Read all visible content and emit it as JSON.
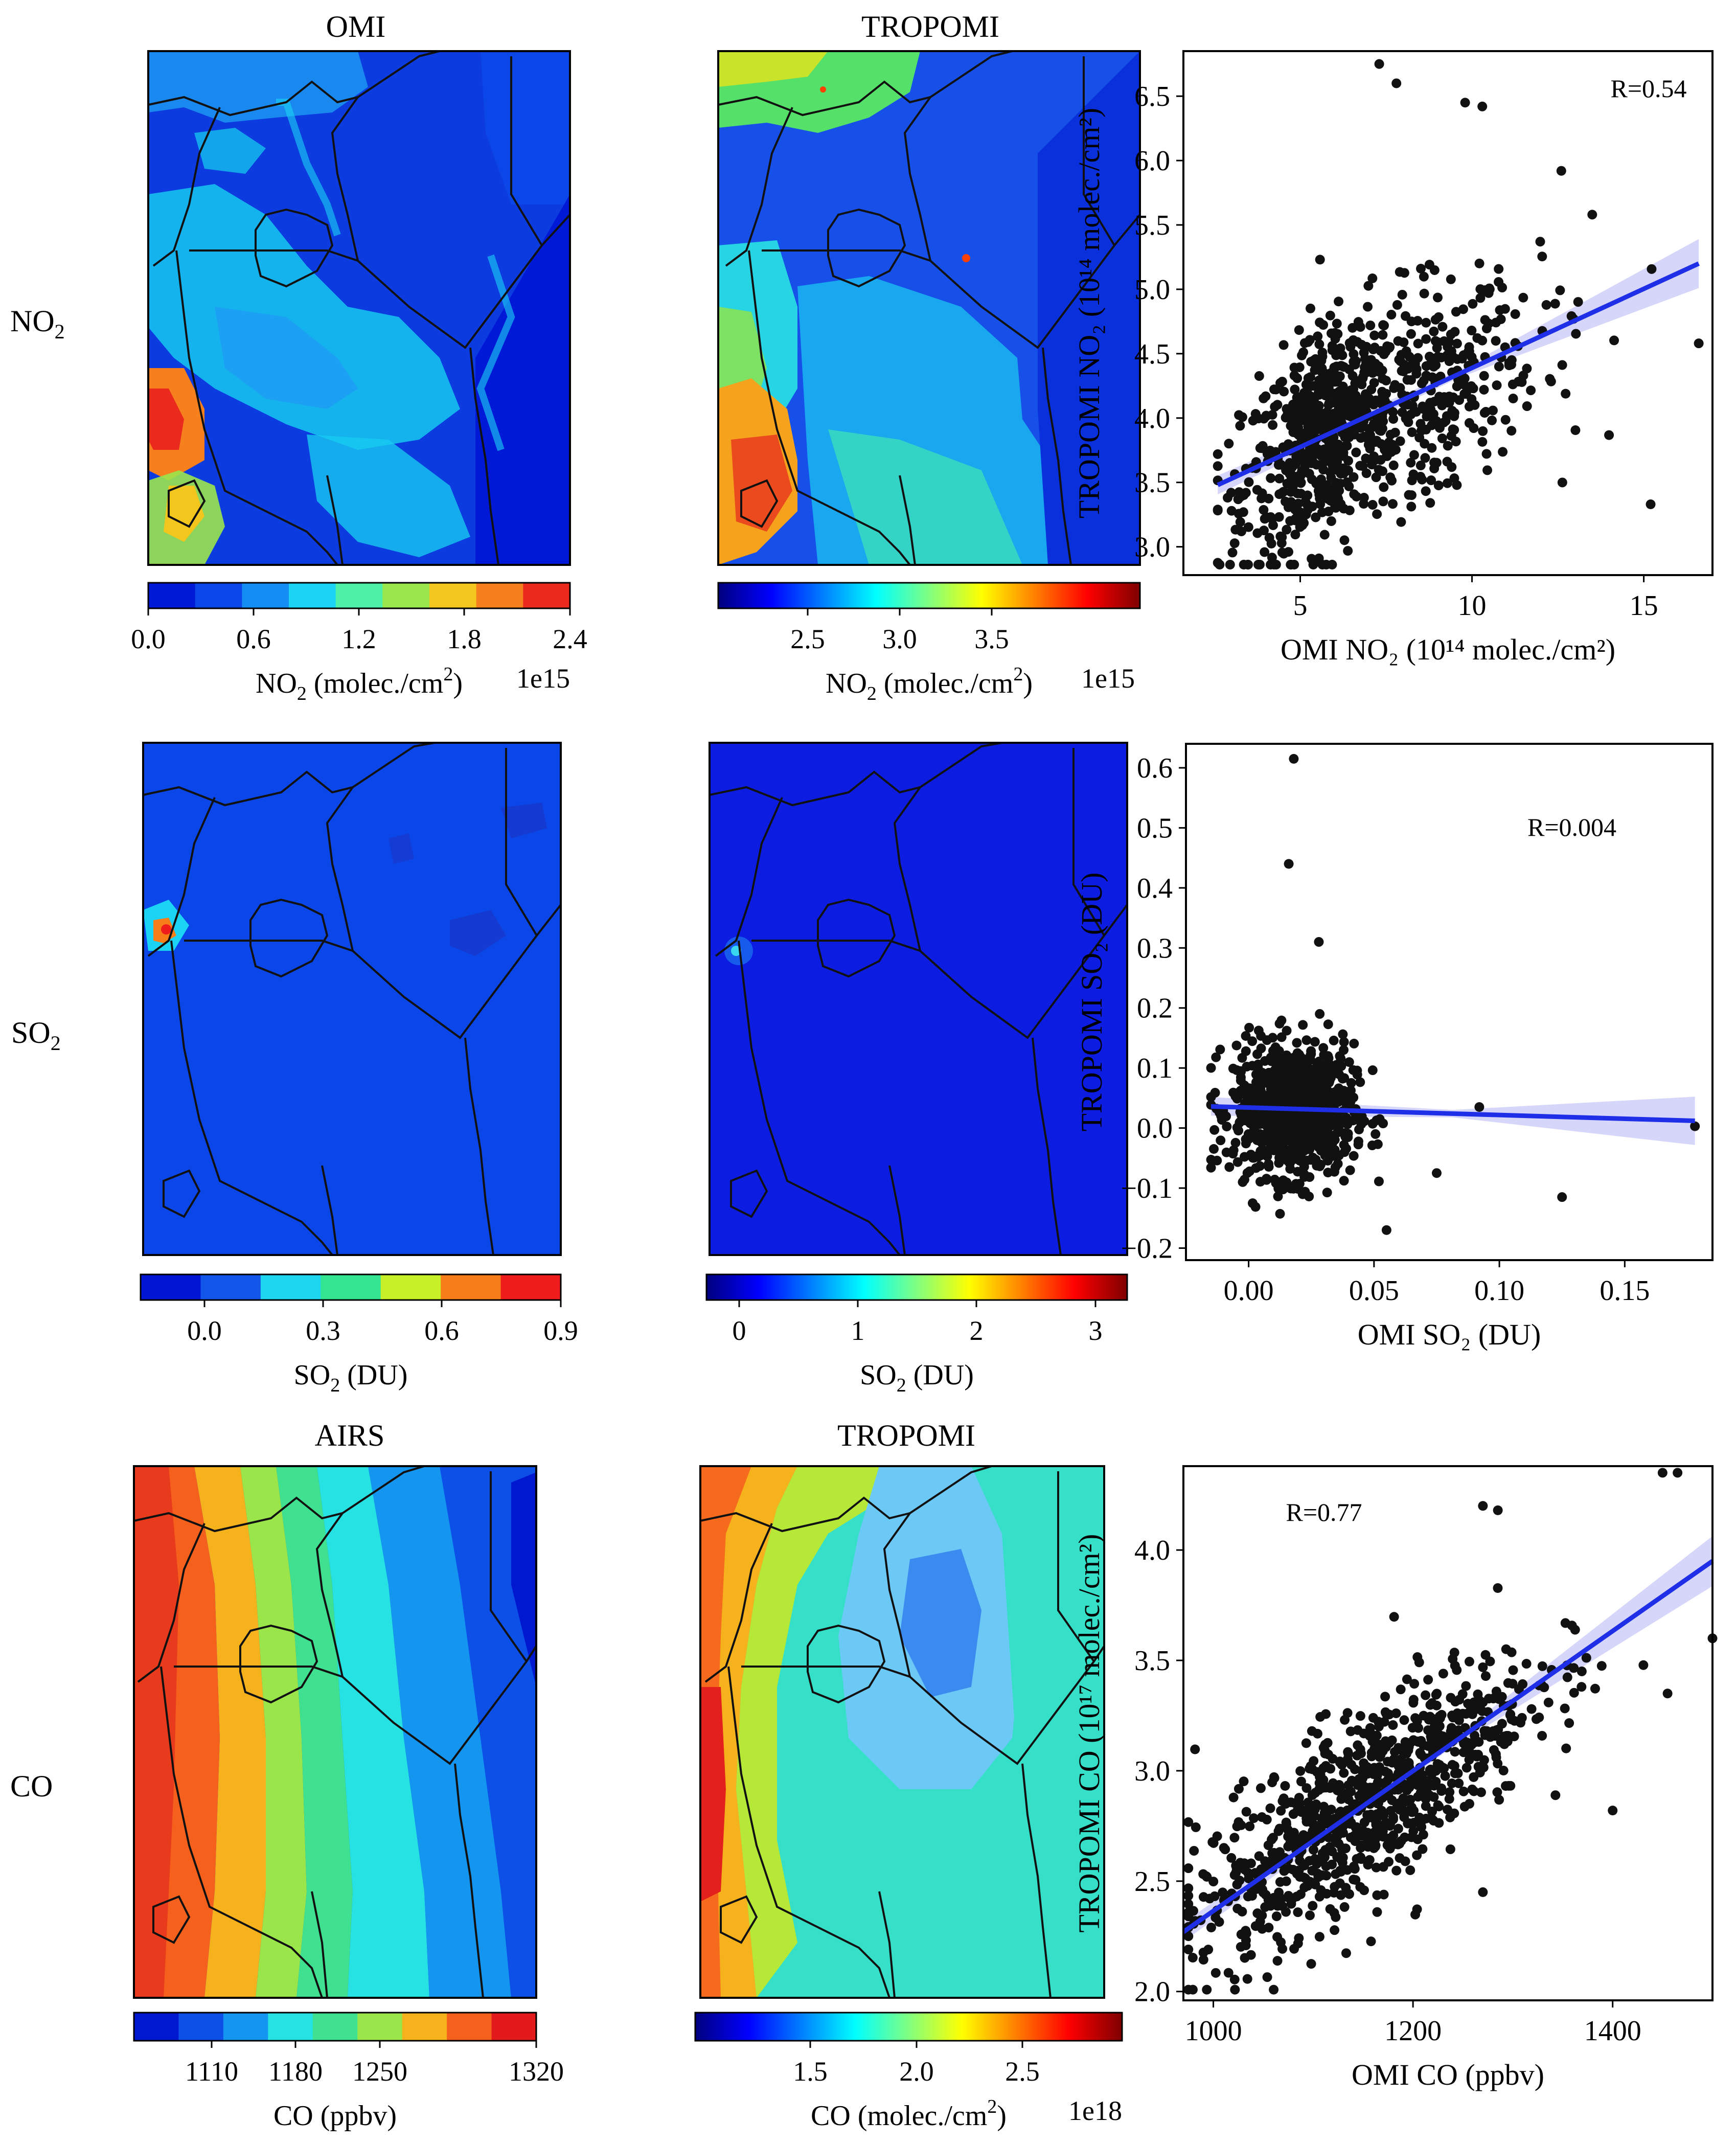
{
  "figure": {
    "row_labels": [
      {
        "main": "NO",
        "sub": "2"
      },
      {
        "main": "SO",
        "sub": "2"
      },
      {
        "main": "CO",
        "sub": ""
      }
    ],
    "maps": [
      {
        "title": "OMI",
        "colorbar": {
          "ticks": [
            "0.0",
            "0.6",
            "1.2",
            "1.8",
            "2.4"
          ],
          "label_main": "NO",
          "label_sub": "2",
          "label_rest": " (molec./cm",
          "label_sup": "2",
          "label_end": ")",
          "exponent": "1e15",
          "discrete": true,
          "colors": [
            "#0019d6",
            "#0b46e8",
            "#148ef5",
            "#1bd3f5",
            "#4df0a6",
            "#9ae64d",
            "#f2c61c",
            "#f5801d",
            "#ea2a1d"
          ]
        }
      },
      {
        "title": "TROPOMI",
        "colorbar": {
          "ticks": [
            "2.5",
            "3.0",
            "3.5"
          ],
          "label_main": "NO",
          "label_sub": "2",
          "label_rest": " (molec./cm",
          "label_sup": "2",
          "label_end": ")",
          "exponent": "1e15",
          "discrete": false,
          "colors": [
            "#00007f",
            "#0000ff",
            "#0080ff",
            "#00ffff",
            "#80ff80",
            "#ffff00",
            "#ff8000",
            "#ff0000",
            "#7f0000"
          ]
        }
      },
      {
        "title": "",
        "colorbar": {
          "ticks": [
            "0.0",
            "0.3",
            "0.6",
            "0.9"
          ],
          "label_main": "SO",
          "label_sub": "2",
          "label_rest": " (DU)",
          "label_sup": "",
          "label_end": "",
          "exponent": "",
          "discrete": true,
          "colors": [
            "#0016d4",
            "#1357ea",
            "#1fd6f0",
            "#35e490",
            "#c8f028",
            "#f77d18",
            "#ef1c1c"
          ]
        }
      },
      {
        "title": "",
        "colorbar": {
          "ticks": [
            "0",
            "1",
            "2",
            "3"
          ],
          "label_main": "SO",
          "label_sub": "2",
          "label_rest": " (DU)",
          "label_sup": "",
          "label_end": "",
          "exponent": "",
          "discrete": false,
          "colors": [
            "#00007f",
            "#0000ff",
            "#0080ff",
            "#00ffff",
            "#80ff80",
            "#ffff00",
            "#ff8000",
            "#ff0000",
            "#7f0000"
          ]
        }
      },
      {
        "title": "AIRS",
        "colorbar": {
          "ticks": [
            "1110",
            "1180",
            "1250",
            "1320"
          ],
          "label_main": "CO (ppbv)",
          "label_sub": "",
          "label_rest": "",
          "label_sup": "",
          "label_end": "",
          "exponent": "",
          "discrete": true,
          "colors": [
            "#0018d0",
            "#0d50e8",
            "#1495f0",
            "#26e2e2",
            "#3fe08f",
            "#9ae54a",
            "#f5b21d",
            "#f5601c",
            "#e31a1c"
          ]
        }
      },
      {
        "title": "TROPOMI",
        "colorbar": {
          "ticks": [
            "1.5",
            "2.0",
            "2.5"
          ],
          "label_main": "CO (molec./cm",
          "label_sub": "",
          "label_rest": "",
          "label_sup": "2",
          "label_end": ")",
          "exponent": "1e18",
          "discrete": false,
          "colors": [
            "#00007f",
            "#0000ff",
            "#0080ff",
            "#00ffff",
            "#80ff80",
            "#ffff00",
            "#ff8000",
            "#ff0000",
            "#7f0000"
          ]
        }
      }
    ]
  },
  "chart_data": [
    {
      "type": "scatter",
      "title": "",
      "annotation": "R=0.54",
      "xlabel": "OMI NO₂ (10¹⁴ molec./cm²)",
      "ylabel": "TROPOMI NO₂ (10¹⁴ molec./cm²)",
      "xticks": [
        5,
        10,
        15
      ],
      "yticks": [
        3.0,
        3.5,
        4.0,
        4.5,
        5.0,
        5.5,
        6.0,
        6.5
      ],
      "xlim": [
        1.6,
        17.0
      ],
      "ylim": [
        2.78,
        6.85
      ],
      "fit": {
        "x": [
          2.6,
          16.6
        ],
        "y": [
          3.48,
          5.2
        ]
      },
      "cloud": {
        "n": 900,
        "x_mean": 6.2,
        "x_sd": 2.6,
        "x_min": 2.6,
        "x_max": 16.6,
        "y_mean": 3.97,
        "y_sd": 0.5,
        "r": 0.54
      },
      "points": [
        {
          "x": 7.3,
          "y": 6.75
        },
        {
          "x": 7.8,
          "y": 6.6
        },
        {
          "x": 9.8,
          "y": 6.45
        },
        {
          "x": 10.3,
          "y": 6.42
        },
        {
          "x": 15.2,
          "y": 3.33
        },
        {
          "x": 16.6,
          "y": 4.58
        },
        {
          "x": 13.5,
          "y": 5.58
        },
        {
          "x": 12.6,
          "y": 5.92
        }
      ]
    },
    {
      "type": "scatter",
      "title": "",
      "annotation": "R=0.004",
      "xlabel": "OMI SO₂ (DU)",
      "ylabel": "TROPOMI SO₂ (DU)",
      "xticks": [
        0.0,
        0.05,
        0.1,
        0.15
      ],
      "yticks": [
        -0.2,
        -0.1,
        0.0,
        0.1,
        0.2,
        0.3,
        0.4,
        0.5,
        0.6
      ],
      "xlim": [
        -0.025,
        0.185
      ],
      "ylim": [
        -0.22,
        0.64
      ],
      "fit": {
        "x": [
          -0.015,
          0.178
        ],
        "y": [
          0.036,
          0.012
        ]
      },
      "cloud": {
        "n": 900,
        "x_mean": 0.018,
        "x_sd": 0.012,
        "x_min": -0.015,
        "x_max": 0.07,
        "y_mean": 0.03,
        "y_sd": 0.055,
        "r": 0.0
      },
      "points": [
        {
          "x": 0.018,
          "y": 0.615
        },
        {
          "x": 0.016,
          "y": 0.44
        },
        {
          "x": 0.178,
          "y": 0.003
        },
        {
          "x": 0.125,
          "y": -0.115
        },
        {
          "x": 0.092,
          "y": 0.035
        },
        {
          "x": 0.075,
          "y": -0.075
        },
        {
          "x": 0.055,
          "y": -0.17
        },
        {
          "x": 0.028,
          "y": 0.31
        }
      ]
    },
    {
      "type": "scatter",
      "title": "",
      "annotation": "R=0.77",
      "xlabel": "OMI CO (ppbv)",
      "ylabel": "TROPOMI  CO (10¹⁷ molec./cm²)",
      "xticks": [
        1000,
        1200,
        1400
      ],
      "yticks": [
        2.0,
        2.5,
        3.0,
        3.5,
        4.0
      ],
      "xlim": [
        970,
        1500
      ],
      "ylim": [
        1.96,
        4.38
      ],
      "fit": {
        "x": [
          970,
          1500
        ],
        "y": [
          2.27,
          3.95
        ]
      },
      "cloud": {
        "n": 900,
        "x_mean": 1150,
        "x_sd": 85,
        "x_min": 975,
        "x_max": 1460,
        "y_mean": 2.85,
        "y_sd": 0.33,
        "r": 0.77
      },
      "points": [
        {
          "x": 1450,
          "y": 4.35
        },
        {
          "x": 1465,
          "y": 4.35
        },
        {
          "x": 1270,
          "y": 4.2
        },
        {
          "x": 1285,
          "y": 4.18
        },
        {
          "x": 1500,
          "y": 3.6
        },
        {
          "x": 1455,
          "y": 3.35
        },
        {
          "x": 1270,
          "y": 2.45
        },
        {
          "x": 1400,
          "y": 2.82
        }
      ]
    }
  ]
}
